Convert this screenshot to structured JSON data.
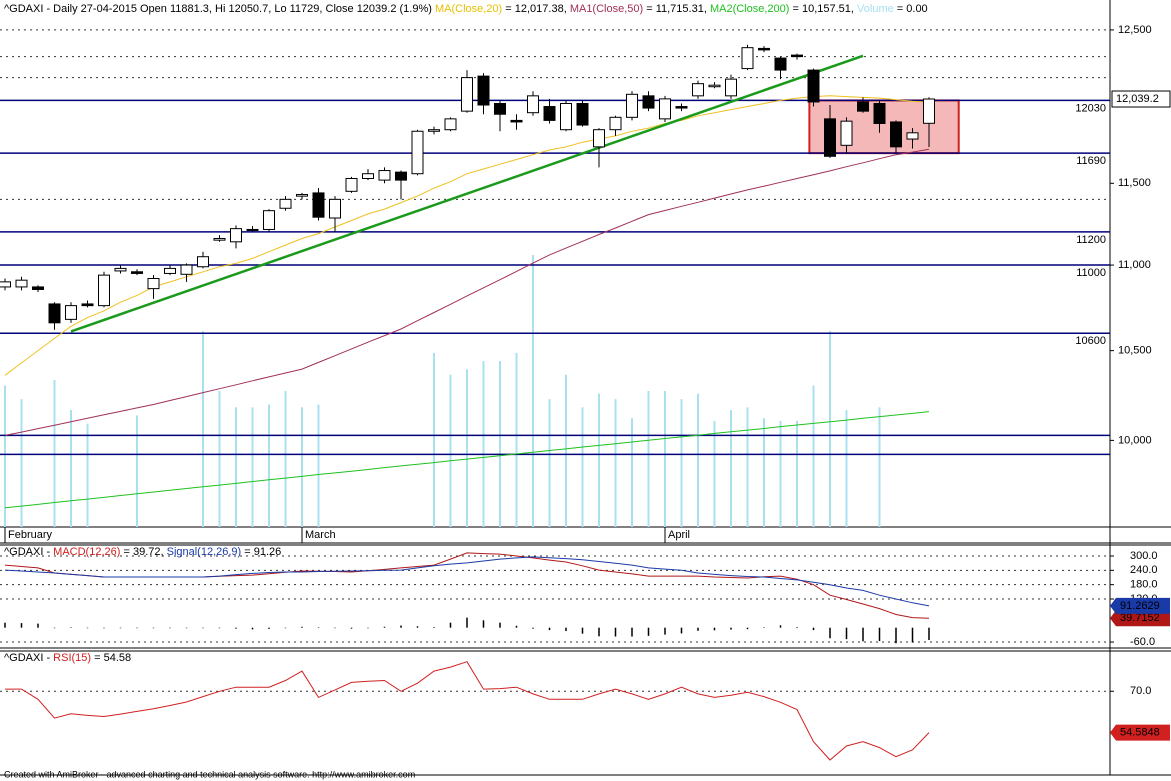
{
  "chart_data": [
    {
      "type": "candlestick",
      "header": [
        {
          "text": "^GDAXI - Daily 27-04-2015 Open 11881.3, Hi 12050.7, Lo 11729, Close 12039.2 (1.9%) ",
          "color": "#000000"
        },
        {
          "text": "MA(Close,20)",
          "color": "#e8c000"
        },
        {
          "text": " = 12,017.38, ",
          "color": "#000000"
        },
        {
          "text": "MA1(Close,50)",
          "color": "#a0305a"
        },
        {
          "text": " = 11,715.31, ",
          "color": "#000000"
        },
        {
          "text": "MA2(Close,200)",
          "color": "#20c020"
        },
        {
          "text": " = 10,157.51, ",
          "color": "#000000"
        },
        {
          "text": "Volume",
          "color": "#a8e0f0"
        },
        {
          "text": " = 0.00",
          "color": "#000000"
        }
      ],
      "categories": [
        "February",
        null,
        null,
        null,
        null,
        null,
        null,
        null,
        null,
        null,
        null,
        null,
        null,
        null,
        null,
        null,
        null,
        null,
        "March",
        null,
        null,
        null,
        null,
        null,
        null,
        null,
        null,
        null,
        null,
        null,
        null,
        null,
        null,
        null,
        null,
        null,
        null,
        null,
        null,
        null,
        "April",
        null,
        null,
        null,
        null,
        null,
        null,
        null,
        null,
        null,
        null,
        null,
        null,
        null,
        null,
        null,
        null
      ],
      "open": [
        10870,
        10870,
        10870,
        10770,
        10680,
        10770,
        10760,
        10965,
        10960,
        10860,
        10950,
        10945,
        10990,
        11150,
        11140,
        11210,
        11215,
        11345,
        11420,
        11440,
        11285,
        11450,
        11530,
        11520,
        11570,
        11560,
        11830,
        11840,
        11960,
        12190,
        12010,
        11900,
        11950,
        11990,
        11840,
        12010,
        11730,
        11840,
        11920,
        12060,
        11910,
        11990,
        12060,
        12120,
        12060,
        12240,
        12375,
        12310,
        12330,
        12230,
        11910,
        11740,
        12020,
        12010,
        11890,
        11780,
        11881.3
      ],
      "high": [
        10920,
        10930,
        10880,
        10780,
        10780,
        10790,
        10960,
        11000,
        10975,
        10940,
        11000,
        11010,
        11080,
        11180,
        11240,
        11235,
        11340,
        11420,
        11440,
        11470,
        11420,
        11540,
        11590,
        11600,
        11580,
        11840,
        11860,
        11920,
        12230,
        12210,
        12030,
        11940,
        12090,
        12040,
        12030,
        12030,
        11850,
        11930,
        12090,
        12090,
        12060,
        12010,
        12160,
        12150,
        12200,
        12400,
        12390,
        12320,
        12340,
        12240,
        12000,
        11920,
        12050,
        12030,
        11900,
        11850,
        12050.7
      ],
      "low": [
        10850,
        10850,
        10840,
        10620,
        10660,
        10750,
        10750,
        10950,
        10940,
        10800,
        10940,
        10900,
        10980,
        11140,
        11100,
        11200,
        11200,
        11330,
        11400,
        11270,
        11200,
        11440,
        11520,
        11500,
        11400,
        11550,
        11810,
        11830,
        11950,
        11940,
        11830,
        11840,
        11930,
        11880,
        11830,
        11860,
        11600,
        11800,
        11900,
        11960,
        11890,
        11960,
        12040,
        12110,
        12040,
        12230,
        12350,
        12170,
        12300,
        11990,
        11660,
        11690,
        11950,
        11820,
        11690,
        11720,
        11729
      ],
      "close": [
        10900,
        10910,
        10855,
        10660,
        10760,
        10760,
        10940,
        10980,
        10950,
        10920,
        10980,
        11000,
        11050,
        11160,
        11220,
        11215,
        11330,
        11400,
        11430,
        11290,
        11400,
        11530,
        11560,
        11580,
        11520,
        11830,
        11840,
        11910,
        12180,
        12000,
        11940,
        11890,
        12060,
        11900,
        12010,
        11870,
        11840,
        11920,
        12070,
        11980,
        12040,
        11980,
        12140,
        12130,
        12170,
        12380,
        12365,
        12230,
        12320,
        12020,
        11670,
        11895,
        11960,
        11880,
        11730,
        11820,
        12039.2
      ],
      "last_price_label": "12,039.2",
      "series": [
        {
          "color": "#f0c020",
          "values": [
            10360,
            10430,
            10500,
            10570,
            10640,
            10690,
            10730,
            10780,
            10820,
            10870,
            10900,
            10930,
            10960,
            10990,
            11010,
            11040,
            11080,
            11120,
            11160,
            11190,
            11230,
            11270,
            11310,
            11340,
            11380,
            11420,
            11470,
            11510,
            11560,
            11590,
            11620,
            11650,
            11680,
            11710,
            11730,
            11760,
            11780,
            11800,
            11830,
            11850,
            11880,
            11900,
            11930,
            11950,
            11970,
            11990,
            12010,
            12030,
            12045,
            12055,
            12060,
            12055,
            12050,
            12045,
            12035,
            12025,
            12017.38
          ]
        },
        {
          "color": "#a0305a",
          "values": [
            10027,
            10045,
            10064,
            10083,
            10102,
            10121,
            10140,
            10159,
            10178,
            10197,
            10219,
            10241,
            10263,
            10285,
            10307,
            10329,
            10351,
            10373,
            10395,
            10433,
            10471,
            10510,
            10548,
            10586,
            10624,
            10672,
            10720,
            10768,
            10817,
            10865,
            10913,
            10962,
            11012,
            11061,
            11102,
            11143,
            11184,
            11224,
            11265,
            11306,
            11331,
            11357,
            11382,
            11408,
            11433,
            11459,
            11482,
            11506,
            11530,
            11553,
            11578,
            11604,
            11629,
            11655,
            11680,
            11697,
            11715.31
          ]
        },
        {
          "color": "#20c020",
          "values": [
            9640,
            9649,
            9658,
            9668,
            9677,
            9686,
            9695,
            9705,
            9714,
            9723,
            9732,
            9742,
            9751,
            9760,
            9769,
            9779,
            9788,
            9797,
            9806,
            9816,
            9825,
            9834,
            9843,
            9853,
            9862,
            9871,
            9880,
            9890,
            9899,
            9908,
            9917,
            9927,
            9936,
            9945,
            9954,
            9964,
            9973,
            9982,
            9991,
            10001,
            10010,
            10019,
            10028,
            10038,
            10047,
            10056,
            10065,
            10075,
            10084,
            10093,
            10102,
            10111,
            10121,
            10130,
            10139,
            10148,
            10157.51
          ]
        }
      ],
      "volume": {
        "color": "#a8e0f0",
        "lim": [
          0,
          100
        ],
        "values": [
          52,
          47,
          null,
          54,
          43,
          38,
          null,
          null,
          41,
          null,
          null,
          null,
          72,
          50,
          44,
          44,
          45,
          50,
          44,
          45,
          null,
          null,
          null,
          null,
          null,
          null,
          64,
          56,
          58,
          61,
          61,
          64,
          100,
          47,
          56,
          44,
          49,
          47,
          40,
          50,
          50,
          47,
          49,
          39,
          43,
          44,
          40,
          39,
          39,
          52,
          72,
          43,
          null,
          44,
          null,
          null,
          null
        ]
      },
      "levels": [
        12030,
        11690,
        11200,
        11000,
        10600
      ],
      "lines": [
        10027,
        9924
      ],
      "dotted_levels": [
        12500,
        12320,
        12180,
        11400
      ],
      "trendline": {
        "color": "#1a9a1a",
        "from": [
          4,
          10610
        ],
        "to": [
          52,
          12325
        ]
      },
      "box": {
        "x": [
          48.75,
          57.8
        ],
        "y": [
          11690,
          12030
        ],
        "fill": "#f4b8b8",
        "stroke": "#d02020"
      },
      "log_scale": true,
      "ylim": [
        9540,
        12705
      ],
      "yticks": [
        {
          "value": 12500,
          "label": "12,500"
        },
        {
          "value": 11500,
          "label": "11,500"
        },
        {
          "value": 11000,
          "label": "11,000"
        },
        {
          "value": 10500,
          "label": "10,500"
        },
        {
          "value": 10000,
          "label": "10,000"
        }
      ]
    },
    {
      "type": "line",
      "header": [
        {
          "text": "^GDAXI - ",
          "color": "#000000"
        },
        {
          "text": "MACD(12,26)",
          "color": "#d02020"
        },
        {
          "text": " = 39.72, ",
          "color": "#000000"
        },
        {
          "text": "Signal(12,26,9)",
          "color": "#1a3aa8"
        },
        {
          "text": " = 91.26",
          "color": "#000000"
        }
      ],
      "series": [
        {
          "color": "#b01818",
          "last_label": "39.7152",
          "values": [
            262,
            256,
            250,
            229,
            224,
            218,
            212,
            212,
            212,
            212,
            212,
            212,
            212,
            215,
            218,
            220,
            226,
            232,
            237,
            236,
            235,
            233,
            238,
            244,
            250,
            256,
            262,
            287,
            313,
            310,
            308,
            300,
            292,
            283,
            275,
            259,
            241,
            233,
            225,
            216,
            216,
            216,
            216,
            212,
            210,
            208,
            213,
            216,
            203,
            180,
            136,
            118,
            99,
            80,
            55,
            42,
            39.72
          ]
        },
        {
          "color": "#1a3aa8",
          "last_label": "91.2629",
          "values": [
            241,
            237,
            233,
            229,
            223,
            218,
            212,
            212,
            212,
            212,
            212,
            212,
            212,
            216,
            222,
            227,
            231,
            233,
            233,
            235,
            236,
            237,
            238,
            240,
            241,
            250,
            259,
            266,
            271,
            279,
            287,
            292,
            296,
            293,
            289,
            284,
            277,
            270,
            262,
            250,
            245,
            240,
            229,
            223,
            218,
            214,
            212,
            206,
            200,
            190,
            180,
            166,
            156,
            136,
            120,
            104,
            91.26
          ]
        }
      ],
      "histogram": {
        "color": "#000000",
        "values": [
          21,
          19,
          17,
          0,
          1,
          0,
          0,
          0,
          0,
          0,
          0,
          0,
          0,
          -1,
          -4,
          -7,
          -5,
          -1,
          4,
          1,
          -1,
          -4,
          0,
          4,
          9,
          6,
          3,
          21,
          42,
          31,
          21,
          8,
          -4,
          -10,
          -14,
          -25,
          -36,
          -37,
          -37,
          -34,
          -29,
          -24,
          -13,
          -11,
          -8,
          -6,
          1,
          10,
          3,
          -10,
          -44,
          -48,
          -57,
          -56,
          -65,
          -62,
          -51.54
        ]
      },
      "ylim": [
        -85,
        346
      ],
      "yticks": [
        {
          "value": 300,
          "label": "300.0"
        },
        {
          "value": 240,
          "label": "240.0"
        },
        {
          "value": 180,
          "label": "180.0"
        },
        {
          "value": 120,
          "label": "120.0"
        },
        {
          "value": -60,
          "label": "-60.0"
        }
      ]
    },
    {
      "type": "line",
      "header": [
        {
          "text": "^GDAXI - ",
          "color": "#000000"
        },
        {
          "text": "RSI(15)",
          "color": "#d02020"
        },
        {
          "text": " = 54.58",
          "color": "#000000"
        }
      ],
      "series": [
        {
          "color": "#d02020",
          "last_label": "54.5848",
          "values": [
            70.8,
            70.8,
            67,
            60,
            61.6,
            61,
            60.6,
            61.5,
            62.5,
            63.5,
            64.7,
            66,
            68,
            70,
            71.5,
            71.5,
            71.5,
            74,
            77.5,
            67.7,
            70.5,
            73.3,
            73.7,
            74,
            70,
            73,
            77.5,
            79,
            81,
            70.8,
            71,
            71.5,
            69,
            67,
            67,
            67,
            69,
            70.8,
            69,
            67,
            69,
            71.5,
            69,
            67.7,
            68.5,
            69.6,
            68,
            65.9,
            63.2,
            51.2,
            44.4,
            49.6,
            51.2,
            49,
            45.6,
            48.2,
            54.58
          ]
        }
      ],
      "ylim": [
        38.8,
        85
      ],
      "yticks": [
        {
          "value": 70,
          "label": "70.0"
        }
      ]
    }
  ],
  "footer": "Created with AmiBroker - advanced charting and technical analysis software. http://www.amibroker.com"
}
